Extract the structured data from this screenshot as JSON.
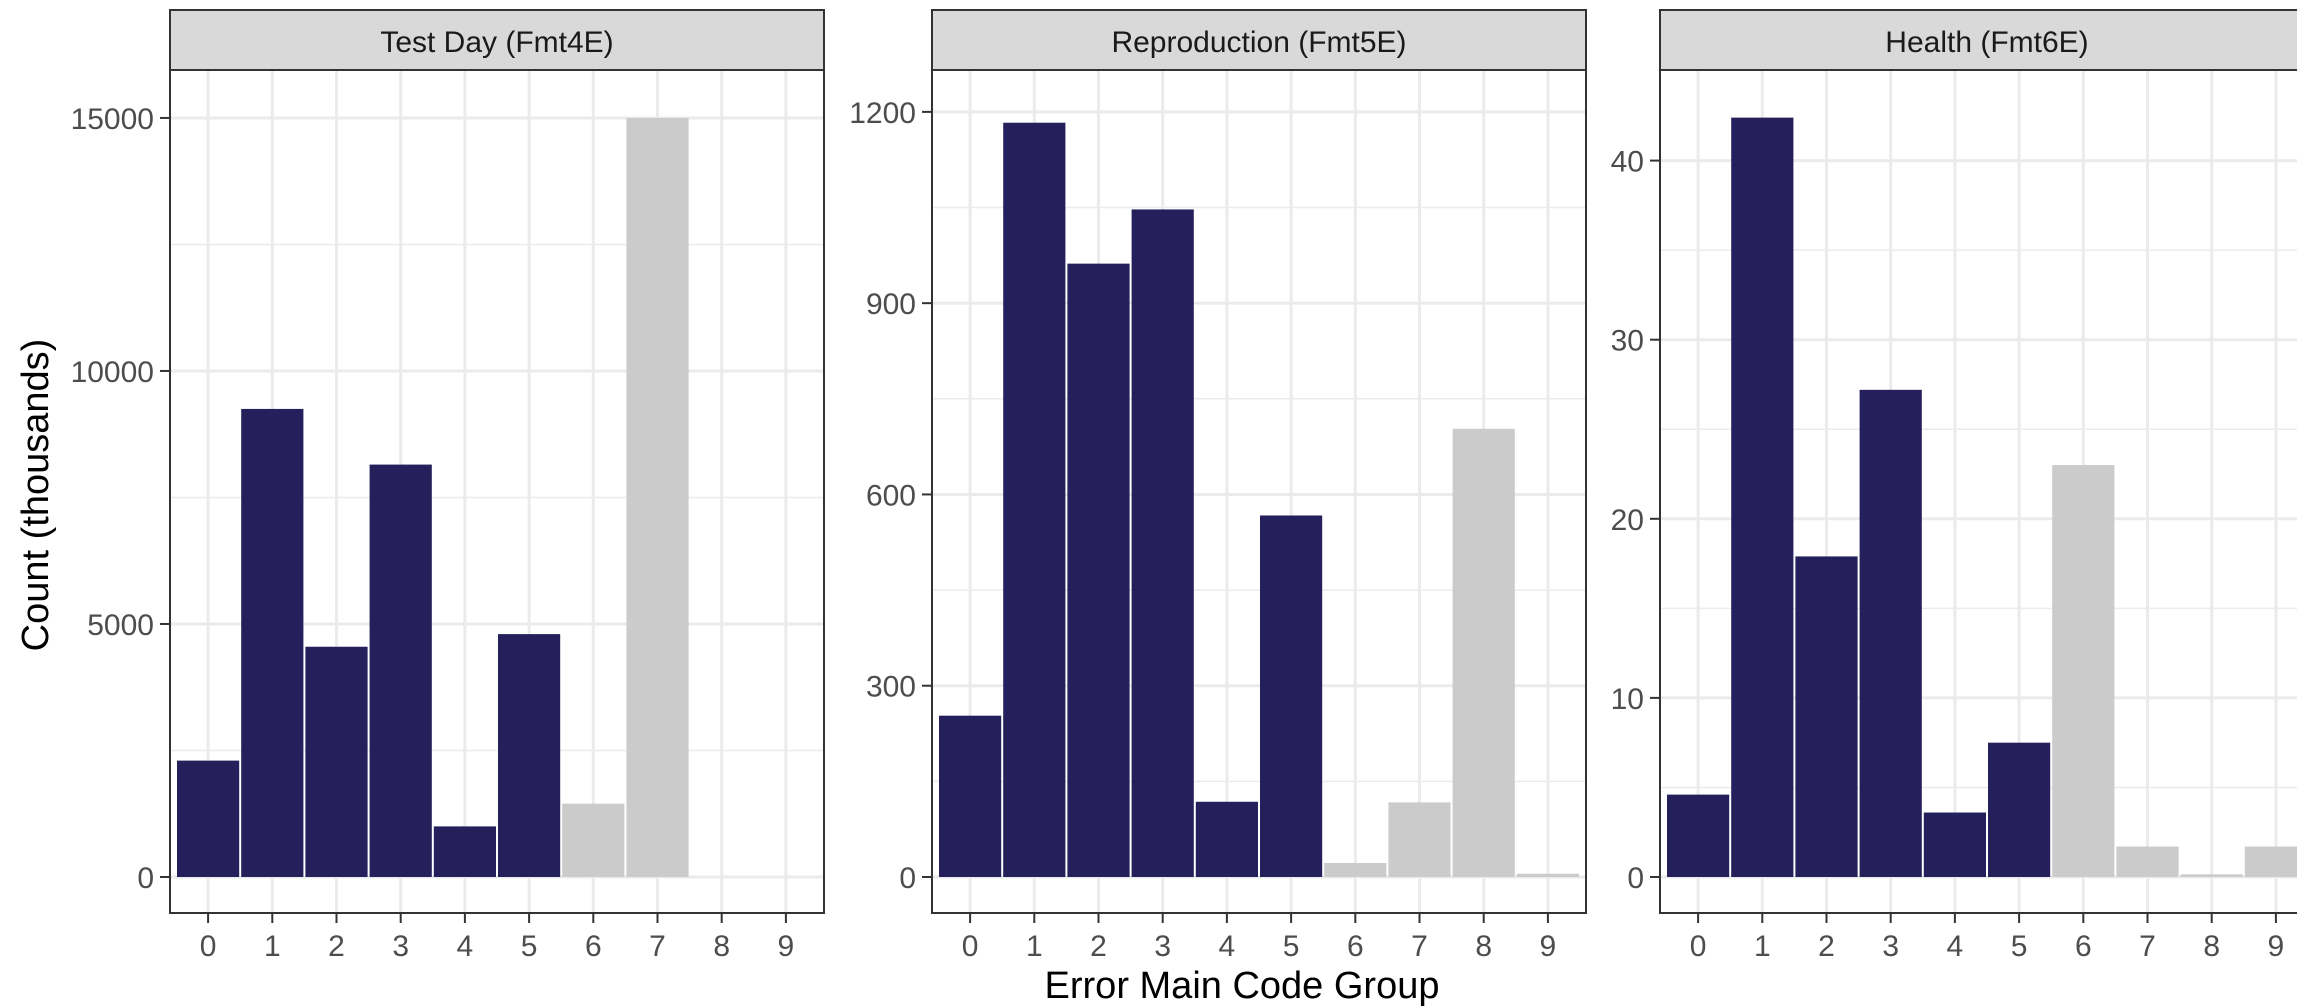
{
  "chart_data": {
    "type": "bar",
    "ylabel": "Count (thousands)",
    "xlabel": "Error Main Code Group",
    "categories": [
      "0",
      "1",
      "2",
      "3",
      "4",
      "5",
      "6",
      "7",
      "8",
      "9"
    ],
    "colors": {
      "highlight": "#25205b",
      "muted": "#cbcbcb",
      "strip": "#d9d9d9",
      "grid": "#ebebeb",
      "border": "#333333"
    },
    "panels": [
      {
        "title": "Test Day (Fmt4E)",
        "ylim": [
          0,
          15750
        ],
        "yticks": [
          0,
          5000,
          10000,
          15000
        ],
        "values": [
          2300,
          9250,
          4550,
          8150,
          1000,
          4800,
          1450,
          15000,
          0,
          0
        ],
        "highlight": [
          true,
          true,
          true,
          true,
          true,
          true,
          false,
          false,
          false,
          false
        ]
      },
      {
        "title": "Reproduction (Fmt5E)",
        "ylim": [
          0,
          1250
        ],
        "yticks": [
          0,
          300,
          600,
          900,
          1200
        ],
        "values": [
          253,
          1183,
          962,
          1047,
          118,
          567,
          22,
          117,
          703,
          5
        ],
        "highlight": [
          true,
          true,
          true,
          true,
          true,
          true,
          false,
          false,
          false,
          false
        ]
      },
      {
        "title": "Health (Fmt6E)",
        "ylim": [
          0,
          44.5
        ],
        "yticks": [
          0,
          10,
          20,
          30,
          40
        ],
        "values": [
          4.6,
          42.4,
          17.9,
          27.2,
          3.6,
          7.5,
          23.0,
          1.7,
          0.15,
          1.7
        ],
        "highlight": [
          true,
          true,
          true,
          true,
          true,
          true,
          false,
          false,
          false,
          false
        ]
      }
    ]
  }
}
